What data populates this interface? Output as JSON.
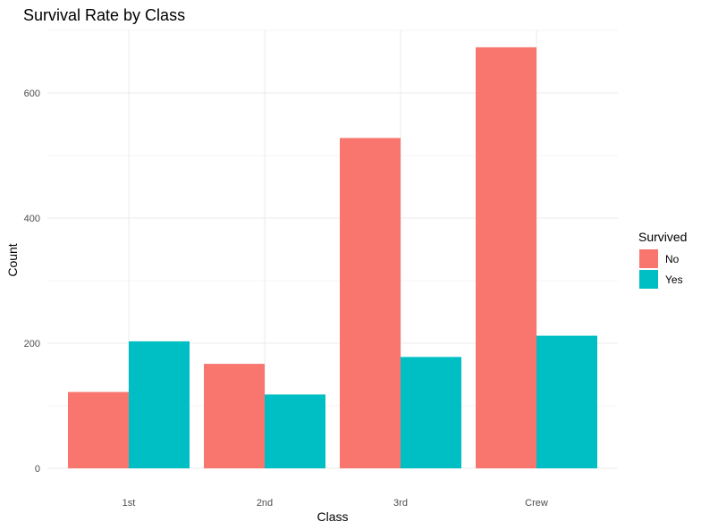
{
  "chart_data": {
    "type": "bar",
    "title": "Survival Rate by Class",
    "xlabel": "Class",
    "ylabel": "Count",
    "categories": [
      "1st",
      "2nd",
      "3rd",
      "Crew"
    ],
    "series": [
      {
        "name": "No",
        "color": "#F8766D",
        "values": [
          122,
          167,
          528,
          673
        ]
      },
      {
        "name": "Yes",
        "color": "#00BFC4",
        "values": [
          203,
          118,
          178,
          212
        ]
      }
    ],
    "ylim": [
      0,
      720
    ],
    "yticks": [
      0,
      200,
      400,
      600
    ],
    "grid": true,
    "legend_title": "Survived",
    "legend_position": "right"
  }
}
